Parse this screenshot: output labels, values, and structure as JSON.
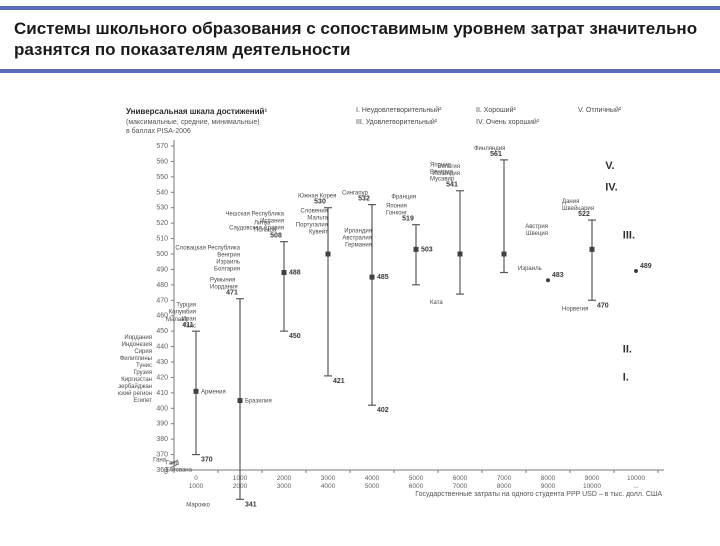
{
  "title": "Системы школьного образования с сопоставимым уровнем затрат значительно разнятся по показателям деятельности",
  "subtitle1": "Универсальная шкала достижений¹",
  "subtitle2": "(максимальные, средние, минимальные)",
  "subtitle3": "в баллах PISA-2006",
  "legend_items": [
    "I. Неудовлетворительный²",
    "II. Хороший²",
    "III. Удовлетворительный²",
    "IV. Очень хороший²",
    "V. Отличный²"
  ],
  "x_axis_title": "Государственные затраты на одного студента PPP USD – в тыс. долл. США",
  "chart": {
    "type": "range-scatter",
    "background_color": "#ffffff",
    "axis_color": "#7a7a7a",
    "line_color": "#5a5a5a",
    "marker_color": "#404040",
    "label_color": "#4a4a4a",
    "title_fontsize": 17,
    "tick_fontsize": 7,
    "roman_fontsize": 11,
    "ylim": [
      360,
      570
    ],
    "ytick_step": 10,
    "x_bands": [
      "0–1000",
      "1000–2000",
      "2000–3000",
      "3000–4000",
      "4000–5000",
      "5000–6000",
      "6000–7000",
      "7000–8000",
      "8000–9000",
      "9000–10000",
      "10000 – ..."
    ],
    "series": [
      {
        "band": 0,
        "low": 370,
        "mid": 411,
        "high": 450,
        "mid_country": "Армения",
        "val_label": "411",
        "top_labels": [
          "Малави"
        ],
        "side_labels": [
          "Иордания",
          "Индонезия",
          "Сирия",
          "Филиппины",
          "Тунис",
          "Грузия",
          "Киргизстан",
          "Азербайджан",
          "Африканский регион",
          "Египет"
        ],
        "bottom_labels": [
          "Гана",
          "Ботсвана"
        ],
        "low_label": "Гана",
        "low_val": "370"
      },
      {
        "band": 1,
        "low": 341,
        "mid": 405,
        "high": 471,
        "mid_country": "Бразилия",
        "high_country": "",
        "val_label": "471",
        "low_label": "Марокко",
        "low_val": "341",
        "top_labels": [
          "Иордания",
          "Румыния"
        ],
        "side_labels": [
          "Турция",
          "Колумбия",
          "Иран",
          "Таис"
        ],
        "bottom_labels": []
      },
      {
        "band": 2,
        "low": 450,
        "mid": 488,
        "high": 508,
        "val_label": "508",
        "mid_val": "488",
        "low_val": "450",
        "top_labels": [
          "Польша",
          "Литва"
        ],
        "side_labels": [
          "Словацкая Республика",
          "Венгрия",
          "Израиль",
          "Болгария"
        ],
        "bottom_labels": [],
        "mid_country": ""
      },
      {
        "band": 3,
        "low": 421,
        "mid": 500,
        "high": 530,
        "val_label": "530",
        "mid_country": "",
        "top_labels": [
          "Южная Корея"
        ],
        "side_labels": [
          "Чешская Республика",
          "Испания",
          "Саудовская Аравия"
        ],
        "bottom_labels": [],
        "low_label": "",
        "low_val": "421"
      },
      {
        "band": 4,
        "low": 402,
        "mid": 485,
        "high": 532,
        "val_label": "532",
        "mid_val": "485",
        "top_labels": [
          "Сингапур"
        ],
        "side_labels": [
          "Словения",
          "Мальта",
          "Португалия",
          "Кувейт"
        ],
        "bottom_labels": [],
        "low_label": "",
        "low_val": "402"
      },
      {
        "band": 5,
        "low": 480,
        "mid": 503,
        "high": 519,
        "val_label": "519",
        "mid_val": "503",
        "top_labels": [
          "Гонконг",
          "Япония"
        ],
        "side_labels": [
          "Ирландия",
          "Австралия",
          "Германия"
        ],
        "bottom_labels": [],
        "low_label": "",
        "low_val": ""
      },
      {
        "band": 6,
        "low": 474,
        "mid": 500,
        "high": 541,
        "val_label": "541",
        "top_labels": [
          "Мусавир",
          "Венгрия",
          "Япония"
        ],
        "side_labels": [
          "Франция"
        ],
        "bottom_labels": [
          "Ката"
        ],
        "low_val": "",
        "mid_val": ""
      },
      {
        "band": 7,
        "low": 488,
        "mid": 500,
        "high": 561,
        "val_label": "561",
        "top_labels": [
          "Финляндия"
        ],
        "side_labels": [
          "Бельгия",
          "Исландия"
        ],
        "bottom_labels": [],
        "low_val": "",
        "mid_val": ""
      },
      {
        "band": 8,
        "low": 483,
        "mid": null,
        "high": null,
        "val_label": "",
        "top_labels": [
          "Израиль"
        ],
        "side_labels": [],
        "bottom_labels": [],
        "single": true,
        "single_val": "483"
      },
      {
        "band": 9,
        "low": 470,
        "mid": 503,
        "high": 522,
        "val_label": "522",
        "low_val": "470",
        "top_labels": [
          "Швейцария",
          "Дания"
        ],
        "side_labels": [
          "Австрия",
          "Швеция"
        ],
        "bottom_labels": [
          "Норвегия"
        ],
        "mid_val": ""
      },
      {
        "band": 10,
        "low": 489,
        "mid": null,
        "high": null,
        "single": true,
        "single_val": "489",
        "top_labels": [],
        "side_labels": [],
        "bottom_labels": []
      }
    ],
    "roman_markers": [
      {
        "label": "I.",
        "x": 9.7,
        "y": 418
      },
      {
        "label": "II.",
        "x": 9.7,
        "y": 436
      },
      {
        "label": "III.",
        "x": 9.7,
        "y": 510
      },
      {
        "label": "IV.",
        "x": 9.3,
        "y": 541
      },
      {
        "label": "V.",
        "x": 9.3,
        "y": 555
      }
    ]
  }
}
